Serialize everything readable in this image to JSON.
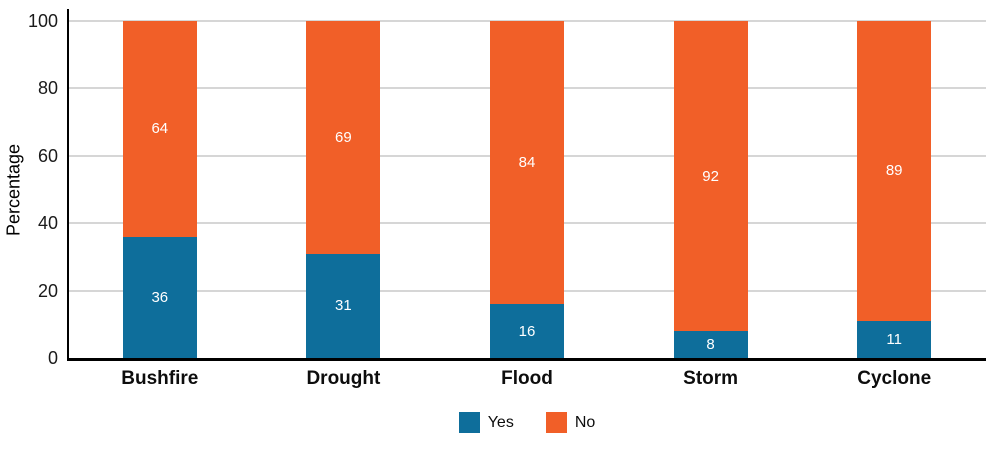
{
  "chart_data": {
    "type": "bar",
    "stacked": true,
    "categories": [
      "Bushfire",
      "Drought",
      "Flood",
      "Storm",
      "Cyclone"
    ],
    "series": [
      {
        "name": "Yes",
        "color": "#0e6e9b",
        "values": [
          36,
          31,
          16,
          8,
          11
        ]
      },
      {
        "name": "No",
        "color": "#f15f28",
        "values": [
          64,
          69,
          84,
          92,
          89
        ]
      }
    ],
    "title": "",
    "xlabel": "",
    "ylabel": "Percentage",
    "ylim": [
      0,
      100
    ],
    "yticks": [
      0,
      20,
      40,
      60,
      80,
      100
    ],
    "grid": true,
    "legend_position": "bottom"
  },
  "colors": {
    "gridline": "#d6d6d6",
    "axis": "#000000",
    "bar_label_text": "#ffffff",
    "background": "#ffffff"
  }
}
